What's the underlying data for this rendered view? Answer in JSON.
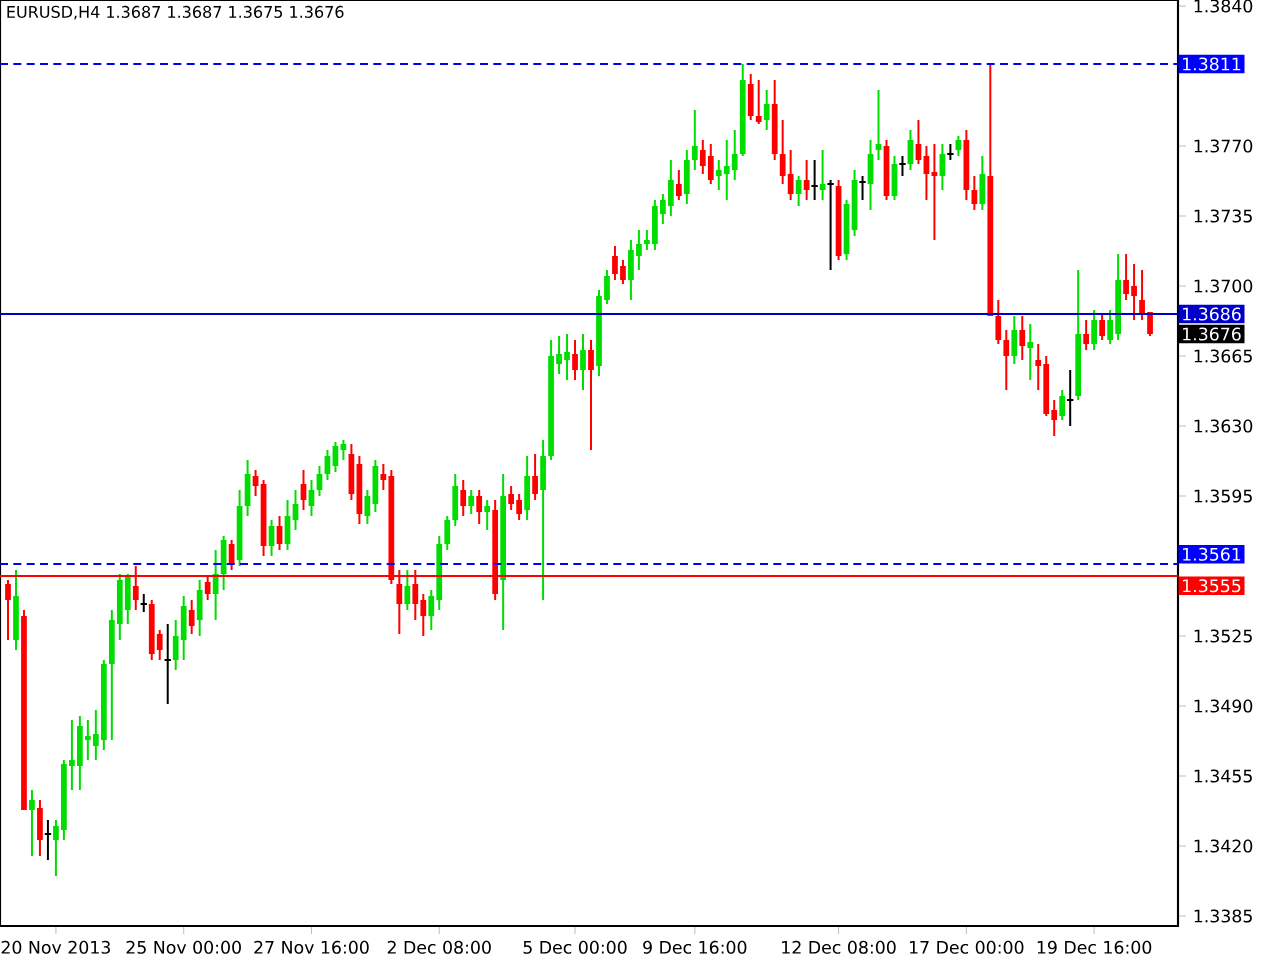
{
  "chart_data": {
    "type": "candlestick",
    "title": "EURUSD,H4  1.3687 1.3687 1.3675 1.3676",
    "categories": [
      null,
      null,
      null,
      null,
      null,
      null,
      "20 Nov 2013",
      null,
      null,
      null,
      null,
      null,
      null,
      null,
      null,
      null,
      null,
      null,
      null,
      null,
      null,
      null,
      "25 Nov 00:00",
      null,
      null,
      null,
      null,
      null,
      null,
      null,
      null,
      null,
      null,
      null,
      null,
      null,
      null,
      null,
      "27 Nov 16:00",
      null,
      null,
      null,
      null,
      null,
      null,
      null,
      null,
      null,
      null,
      null,
      null,
      null,
      null,
      null,
      "2 Dec 08:00",
      null,
      null,
      null,
      null,
      null,
      null,
      null,
      null,
      null,
      null,
      null,
      null,
      null,
      null,
      null,
      null,
      "5 Dec 00:00",
      null,
      null,
      null,
      null,
      null,
      null,
      null,
      null,
      null,
      null,
      null,
      null,
      null,
      null,
      "9 Dec 16:00",
      null,
      null,
      null,
      null,
      null,
      null,
      null,
      null,
      null,
      null,
      null,
      null,
      null,
      null,
      null,
      null,
      null,
      "12 Dec 08:00",
      null,
      null,
      null,
      null,
      null,
      null,
      null,
      null,
      null,
      null,
      null,
      null,
      null,
      null,
      null,
      "17 Dec 00:00",
      null,
      null,
      null,
      null,
      null,
      null,
      null,
      null,
      null,
      null,
      null,
      null,
      null,
      null,
      null,
      "19 Dec 16:00",
      null,
      null,
      null,
      null,
      null,
      null,
      null
    ],
    "ohlc": [
      [
        1.3551,
        1.3553,
        1.3523,
        1.3543
      ],
      [
        1.3523,
        1.3558,
        1.3518,
        1.3545
      ],
      [
        1.3535,
        1.3538,
        1.3438,
        1.3438
      ],
      [
        1.3438,
        1.3448,
        1.3415,
        1.3443
      ],
      [
        1.3439,
        1.3443,
        1.3415,
        1.3423
      ],
      [
        1.3426,
        1.3433,
        1.3413,
        1.3426
      ],
      [
        1.3423,
        1.3433,
        1.3405,
        1.343
      ],
      [
        1.3428,
        1.3463,
        1.3423,
        1.3461
      ],
      [
        1.346,
        1.3483,
        1.3448,
        1.3463
      ],
      [
        1.346,
        1.3485,
        1.3448,
        1.348
      ],
      [
        1.3473,
        1.3483,
        1.3463,
        1.3475
      ],
      [
        1.347,
        1.3488,
        1.3463,
        1.3476
      ],
      [
        1.3473,
        1.3513,
        1.3468,
        1.3511
      ],
      [
        1.3511,
        1.3538,
        1.3473,
        1.3533
      ],
      [
        1.3531,
        1.3556,
        1.3523,
        1.3553
      ],
      [
        1.3538,
        1.3556,
        1.3531,
        1.3555
      ],
      [
        1.355,
        1.356,
        1.3538,
        1.3543
      ],
      [
        1.3541,
        1.3546,
        1.3537,
        1.3541
      ],
      [
        1.3541,
        1.3543,
        1.3513,
        1.3516
      ],
      [
        1.3526,
        1.3528,
        1.3513,
        1.3518
      ],
      [
        1.3513,
        1.3531,
        1.3491,
        1.3513
      ],
      [
        1.3513,
        1.3533,
        1.3508,
        1.3525
      ],
      [
        1.3523,
        1.3545,
        1.3513,
        1.354
      ],
      [
        1.3538,
        1.3543,
        1.3526,
        1.353
      ],
      [
        1.3533,
        1.3553,
        1.3525,
        1.3548
      ],
      [
        1.3552,
        1.3555,
        1.3543,
        1.3546
      ],
      [
        1.3546,
        1.3568,
        1.3533,
        1.3556
      ],
      [
        1.3556,
        1.3575,
        1.3548,
        1.3573
      ],
      [
        1.3571,
        1.3573,
        1.3558,
        1.3561
      ],
      [
        1.3563,
        1.3598,
        1.356,
        1.359
      ],
      [
        1.359,
        1.3613,
        1.3585,
        1.3606
      ],
      [
        1.3605,
        1.3608,
        1.3595,
        1.36
      ],
      [
        1.3601,
        1.3603,
        1.3565,
        1.357
      ],
      [
        1.357,
        1.3583,
        1.3565,
        1.358
      ],
      [
        1.358,
        1.3585,
        1.3568,
        1.3571
      ],
      [
        1.3571,
        1.3593,
        1.3568,
        1.3585
      ],
      [
        1.3583,
        1.3598,
        1.3578,
        1.3591
      ],
      [
        1.3601,
        1.3608,
        1.3588,
        1.3593
      ],
      [
        1.359,
        1.3603,
        1.3585,
        1.3598
      ],
      [
        1.3598,
        1.361,
        1.3595,
        1.3606
      ],
      [
        1.3606,
        1.3618,
        1.3603,
        1.3615
      ],
      [
        1.361,
        1.3622,
        1.3607,
        1.362
      ],
      [
        1.3618,
        1.3623,
        1.3613,
        1.3621
      ],
      [
        1.3616,
        1.3621,
        1.3593,
        1.3596
      ],
      [
        1.3611,
        1.3615,
        1.3581,
        1.3586
      ],
      [
        1.3585,
        1.3598,
        1.3581,
        1.3595
      ],
      [
        1.3591,
        1.3613,
        1.3587,
        1.361
      ],
      [
        1.3606,
        1.3611,
        1.3598,
        1.3603
      ],
      [
        1.3605,
        1.3608,
        1.3551,
        1.3553
      ],
      [
        1.3551,
        1.3558,
        1.3526,
        1.3541
      ],
      [
        1.3541,
        1.3558,
        1.3538,
        1.355
      ],
      [
        1.3551,
        1.3558,
        1.3533,
        1.3541
      ],
      [
        1.3543,
        1.3546,
        1.3525,
        1.3535
      ],
      [
        1.3535,
        1.3548,
        1.3528,
        1.3545
      ],
      [
        1.3543,
        1.3575,
        1.3538,
        1.3571
      ],
      [
        1.3571,
        1.3585,
        1.3568,
        1.3583
      ],
      [
        1.3583,
        1.3606,
        1.358,
        1.36
      ],
      [
        1.3598,
        1.3603,
        1.3585,
        1.359
      ],
      [
        1.359,
        1.3598,
        1.3586,
        1.3595
      ],
      [
        1.3595,
        1.3598,
        1.3581,
        1.3587
      ],
      [
        1.3587,
        1.3593,
        1.3578,
        1.359
      ],
      [
        1.3588,
        1.3593,
        1.3543,
        1.3546
      ],
      [
        1.3553,
        1.3606,
        1.3528,
        1.3595
      ],
      [
        1.3596,
        1.36,
        1.3588,
        1.3591
      ],
      [
        1.3593,
        1.3596,
        1.3583,
        1.3586
      ],
      [
        1.3588,
        1.3615,
        1.3583,
        1.3605
      ],
      [
        1.3605,
        1.3616,
        1.3593,
        1.3596
      ],
      [
        1.3598,
        1.3623,
        1.3543,
        1.3615
      ],
      [
        1.3615,
        1.3673,
        1.3613,
        1.3665
      ],
      [
        1.3661,
        1.3675,
        1.3656,
        1.3666
      ],
      [
        1.3663,
        1.3676,
        1.3653,
        1.3667
      ],
      [
        1.3666,
        1.3673,
        1.3653,
        1.3658
      ],
      [
        1.3658,
        1.3676,
        1.3648,
        1.3668
      ],
      [
        1.3668,
        1.3673,
        1.3618,
        1.3658
      ],
      [
        1.366,
        1.3698,
        1.3655,
        1.3695
      ],
      [
        1.3693,
        1.3708,
        1.3691,
        1.3705
      ],
      [
        1.3715,
        1.372,
        1.3703,
        1.3706
      ],
      [
        1.371,
        1.3713,
        1.3701,
        1.3703
      ],
      [
        1.3703,
        1.3723,
        1.3693,
        1.3718
      ],
      [
        1.3715,
        1.3728,
        1.3708,
        1.3721
      ],
      [
        1.3721,
        1.3728,
        1.3718,
        1.3723
      ],
      [
        1.3721,
        1.3743,
        1.3718,
        1.374
      ],
      [
        1.3736,
        1.3746,
        1.3731,
        1.3743
      ],
      [
        1.374,
        1.3763,
        1.3735,
        1.3753
      ],
      [
        1.3751,
        1.3758,
        1.3743,
        1.3745
      ],
      [
        1.3746,
        1.3768,
        1.3741,
        1.3763
      ],
      [
        1.3763,
        1.3788,
        1.3758,
        1.377
      ],
      [
        1.3768,
        1.3773,
        1.3756,
        1.376
      ],
      [
        1.3765,
        1.3771,
        1.3751,
        1.3753
      ],
      [
        1.3755,
        1.3763,
        1.3748,
        1.3758
      ],
      [
        1.3756,
        1.3773,
        1.3743,
        1.376
      ],
      [
        1.3758,
        1.3778,
        1.3753,
        1.3766
      ],
      [
        1.3766,
        1.3811,
        1.3765,
        1.3803
      ],
      [
        1.3801,
        1.3806,
        1.3783,
        1.3785
      ],
      [
        1.3785,
        1.3803,
        1.3781,
        1.3782
      ],
      [
        1.3783,
        1.3798,
        1.3778,
        1.3791
      ],
      [
        1.3791,
        1.3803,
        1.3763,
        1.3766
      ],
      [
        1.3766,
        1.3783,
        1.3751,
        1.3755
      ],
      [
        1.3756,
        1.3768,
        1.3743,
        1.3746
      ],
      [
        1.3746,
        1.3755,
        1.374,
        1.3753
      ],
      [
        1.3753,
        1.3763,
        1.3743,
        1.3748
      ],
      [
        1.375,
        1.3763,
        1.3743,
        1.375
      ],
      [
        1.3748,
        1.3768,
        1.3743,
        1.3751
      ],
      [
        1.3751,
        1.3753,
        1.3708,
        1.3751
      ],
      [
        1.375,
        1.3753,
        1.3713,
        1.3715
      ],
      [
        1.3716,
        1.3743,
        1.3713,
        1.3741
      ],
      [
        1.3728,
        1.3758,
        1.3725,
        1.3753
      ],
      [
        1.3752,
        1.3755,
        1.3743,
        1.3752
      ],
      [
        1.3751,
        1.3773,
        1.3738,
        1.3766
      ],
      [
        1.3768,
        1.3798,
        1.3763,
        1.3771
      ],
      [
        1.377,
        1.3773,
        1.3743,
        1.3745
      ],
      [
        1.3745,
        1.3765,
        1.3743,
        1.3761
      ],
      [
        1.3761,
        1.3765,
        1.3755,
        1.3761
      ],
      [
        1.3761,
        1.3778,
        1.3758,
        1.3773
      ],
      [
        1.3771,
        1.3783,
        1.3761,
        1.3763
      ],
      [
        1.3765,
        1.377,
        1.3743,
        1.3756
      ],
      [
        1.3757,
        1.3771,
        1.3723,
        1.3755
      ],
      [
        1.3755,
        1.3771,
        1.3748,
        1.3766
      ],
      [
        1.3766,
        1.3771,
        1.3763,
        1.3766
      ],
      [
        1.3768,
        1.3775,
        1.3765,
        1.3773
      ],
      [
        1.3773,
        1.3778,
        1.3743,
        1.3748
      ],
      [
        1.3748,
        1.3755,
        1.3738,
        1.3741
      ],
      [
        1.3741,
        1.3765,
        1.3738,
        1.3756
      ],
      [
        1.3755,
        1.3811,
        1.3685,
        1.3685
      ],
      [
        1.3685,
        1.3693,
        1.3671,
        1.3673
      ],
      [
        1.3673,
        1.3678,
        1.3648,
        1.3665
      ],
      [
        1.3665,
        1.3685,
        1.3661,
        1.3678
      ],
      [
        1.3678,
        1.3685,
        1.3663,
        1.367
      ],
      [
        1.3669,
        1.3681,
        1.3653,
        1.3672
      ],
      [
        1.3663,
        1.3671,
        1.3648,
        1.366
      ],
      [
        1.3661,
        1.3665,
        1.3635,
        1.3636
      ],
      [
        1.3638,
        1.3643,
        1.3625,
        1.3633
      ],
      [
        1.3635,
        1.3648,
        1.3633,
        1.3645
      ],
      [
        1.3643,
        1.3658,
        1.363,
        1.3643
      ],
      [
        1.3645,
        1.3708,
        1.3643,
        1.3676
      ],
      [
        1.3676,
        1.3683,
        1.3668,
        1.3671
      ],
      [
        1.3671,
        1.3688,
        1.3668,
        1.3683
      ],
      [
        1.3683,
        1.3686,
        1.3673,
        1.3675
      ],
      [
        1.3673,
        1.3688,
        1.3671,
        1.3683
      ],
      [
        1.3676,
        1.3716,
        1.3673,
        1.3703
      ],
      [
        1.3703,
        1.3716,
        1.3693,
        1.3696
      ],
      [
        1.37,
        1.3711,
        1.3683,
        1.3695
      ],
      [
        1.3693,
        1.3708,
        1.3683,
        1.3686
      ],
      [
        1.3687,
        1.3687,
        1.3675,
        1.3676
      ]
    ],
    "ylim": [
      1.338,
      1.3843
    ],
    "yticks": [
      {
        "value": 1.384,
        "label": "1.3840"
      },
      {
        "value": 1.377,
        "label": "1.3770"
      },
      1.3735,
      {
        "value": 1.37,
        "label": "1.3700"
      },
      1.3665,
      {
        "value": 1.363,
        "label": "1.3630"
      },
      1.3595,
      1.3525,
      {
        "value": 1.349,
        "label": "1.3490"
      },
      1.3455,
      {
        "value": 1.342,
        "label": "1.3420"
      },
      1.3385
    ],
    "ref_lines": [
      {
        "axis": "y",
        "value": 1.3811,
        "label": "1.3811",
        "color": "#0000ff",
        "line_style": "dashed"
      },
      {
        "axis": "y",
        "value": 1.3686,
        "label": "1.3686",
        "color": "#0000c8",
        "line_style": "solid"
      },
      {
        "axis": "y",
        "value": 1.3561,
        "label": "1.3561",
        "color": "#0000ff",
        "line_style": "dashed"
      },
      {
        "axis": "y",
        "value": 1.3555,
        "label": "1.3555",
        "color": "#ff0000",
        "line_style": "solid"
      }
    ],
    "annotations": [
      "1.3676"
    ]
  }
}
